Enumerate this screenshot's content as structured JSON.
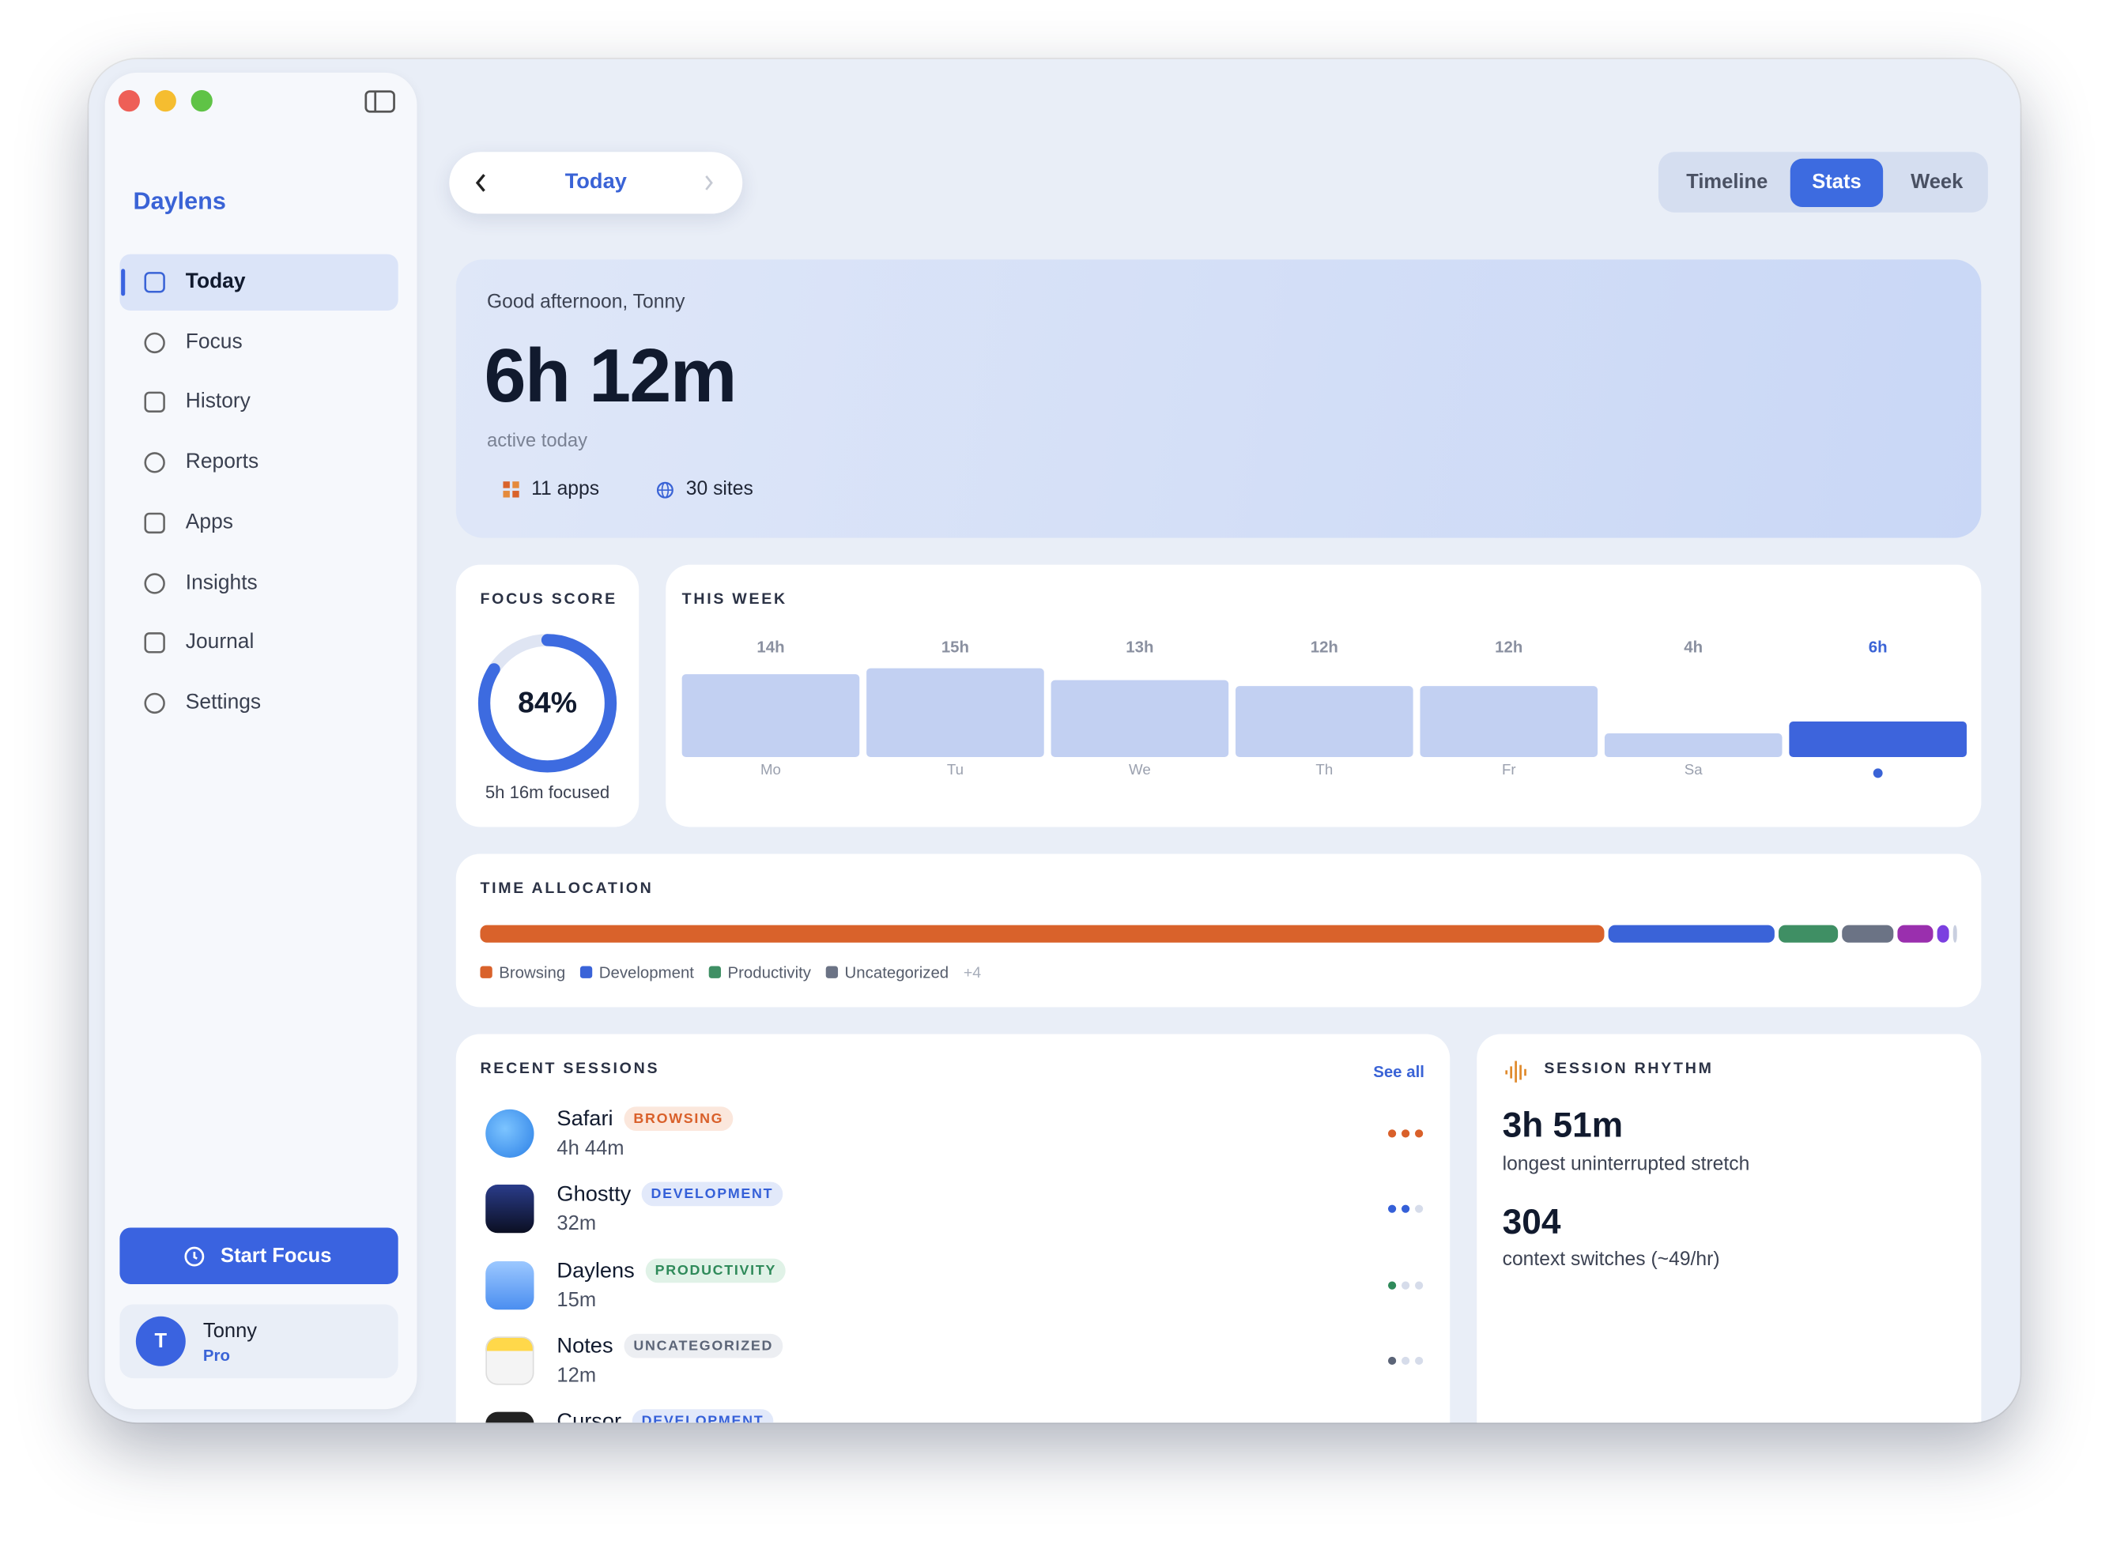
{
  "sidebar": {
    "brand": "Daylens",
    "nav": [
      "Today",
      "Focus",
      "History",
      "Reports",
      "Apps",
      "Insights",
      "Journal",
      "Settings"
    ],
    "start_focus": "Start Focus",
    "user": {
      "initial": "T",
      "name": "Tonny",
      "plan": "Pro"
    }
  },
  "header": {
    "date": "Today",
    "tabs": [
      "Timeline",
      "Stats",
      "Week"
    ]
  },
  "hero": {
    "greeting": "Good afternoon, Tonny",
    "total": "6h 12m",
    "caption": "active today",
    "apps": "11 apps",
    "sites": "30 sites"
  },
  "chart_data": [
    {
      "type": "gauge",
      "title": "FOCUS SCORE",
      "value": 84,
      "value_label": "84%",
      "ylim": [
        0,
        100
      ],
      "subtitle": "5h 16m focused",
      "color": "#3d6be0"
    },
    {
      "type": "bar",
      "title": "THIS WEEK",
      "categories": [
        "Mo",
        "Tu",
        "We",
        "Th",
        "Fr",
        "Sa",
        null
      ],
      "values": [
        14,
        15,
        13,
        12,
        12,
        4,
        6
      ],
      "value_labels": [
        "14h",
        "15h",
        "13h",
        "12h",
        "12h",
        "4h",
        "6h"
      ],
      "colors": [
        "#c2d0f2",
        "#c2d0f2",
        "#c2d0f2",
        "#c2d0f2",
        "#c2d0f2",
        "#c2d0f2",
        "#3d64dc"
      ]
    },
    {
      "type": "stacked_bar",
      "title": "TIME ALLOCATION",
      "series": [
        {
          "name": "Browsing",
          "color": "#d9622b",
          "values": [
            284
          ]
        },
        {
          "name": "Development",
          "color": "#3a63d8",
          "values": [
            42
          ]
        },
        {
          "name": "Productivity",
          "color": "#3f8f64",
          "values": [
            15
          ]
        },
        {
          "name": "Uncategorized",
          "color": "#6b7385",
          "values": [
            13
          ]
        },
        {
          "name": null,
          "color": "#9a2fae",
          "values": [
            9
          ]
        },
        {
          "name": null,
          "color": "#7b3fe0",
          "values": [
            3
          ]
        },
        {
          "name": null,
          "color": "#c9cfe0",
          "values": [
            1
          ]
        }
      ],
      "more": "+4"
    }
  ],
  "sessions": {
    "title": "RECENT SESSIONS",
    "see_all": "See all",
    "items": [
      {
        "app": "Safari",
        "tag": "BROWSING",
        "color": "#d9602a",
        "tag_bg": "#fbe7dc",
        "duration": "4h 44m",
        "intensity": 3
      },
      {
        "app": "Ghostty",
        "tag": "DEVELOPMENT",
        "color": "#3560d8",
        "tag_bg": "#e2e9fa",
        "duration": "32m",
        "intensity": 2
      },
      {
        "app": "Daylens",
        "tag": "PRODUCTIVITY",
        "color": "#2f8a5a",
        "tag_bg": "#e0f2e7",
        "duration": "15m",
        "intensity": 1
      },
      {
        "app": "Notes",
        "tag": "UNCATEGORIZED",
        "color": "#5b6477",
        "tag_bg": "#eceef2",
        "duration": "12m",
        "intensity": 1
      },
      {
        "app": "Cursor",
        "tag": "DEVELOPMENT",
        "color": "#3560d8",
        "tag_bg": "#e2e9fa"
      }
    ]
  },
  "rhythm": {
    "title": "SESSION RHYTHM",
    "longest": "3h 51m",
    "longest_caption": "longest uninterrupted stretch",
    "switches": 304,
    "switches_caption": "context switches (~49/hr)"
  }
}
